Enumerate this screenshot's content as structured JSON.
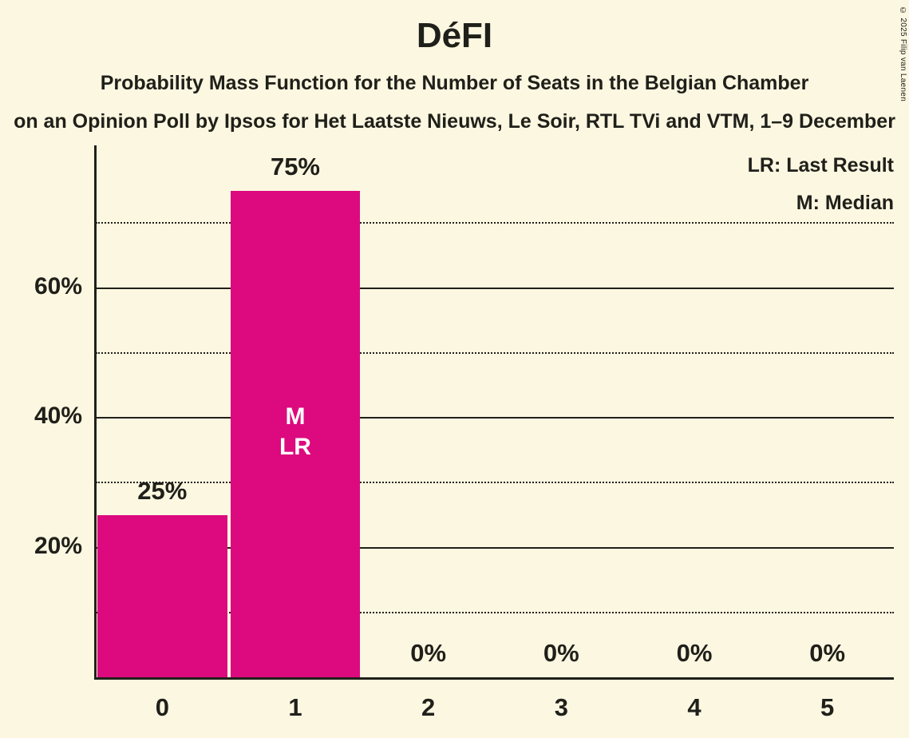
{
  "chart_data": {
    "type": "bar",
    "title": "DéFI",
    "subtitle": "Probability Mass Function for the Number of Seats in the Belgian Chamber",
    "subtitle2": "on an Opinion Poll by Ipsos for Het Laatste Nieuws, Le Soir, RTL TVi and VTM, 1–9 December",
    "copyright": "© 2025 Filip van Laenen",
    "legend": [
      "LR: Last Result",
      "M: Median"
    ],
    "categories": [
      "0",
      "1",
      "2",
      "3",
      "4",
      "5"
    ],
    "values": [
      25,
      75,
      0,
      0,
      0,
      0
    ],
    "value_labels": [
      "25%",
      "75%",
      "0%",
      "0%",
      "0%",
      "0%"
    ],
    "bar_annotations": [
      {
        "index": 1,
        "lines": [
          "M",
          "LR"
        ]
      }
    ],
    "xlabel": "",
    "ylabel": "",
    "ylim": [
      0,
      82
    ],
    "yticks": [
      {
        "value": 20,
        "label": "20%"
      },
      {
        "value": 40,
        "label": "40%"
      },
      {
        "value": 60,
        "label": "60%"
      }
    ],
    "solid_gridlines": [
      20,
      40,
      60
    ],
    "dotted_gridlines": [
      10,
      30,
      50,
      70
    ],
    "grid": true,
    "legend_position": "top-right",
    "colors": {
      "bar": "#DC0A7E",
      "background": "#FCF7E1",
      "text": "#20201A",
      "annotation_text": "#FFFFFF"
    }
  }
}
